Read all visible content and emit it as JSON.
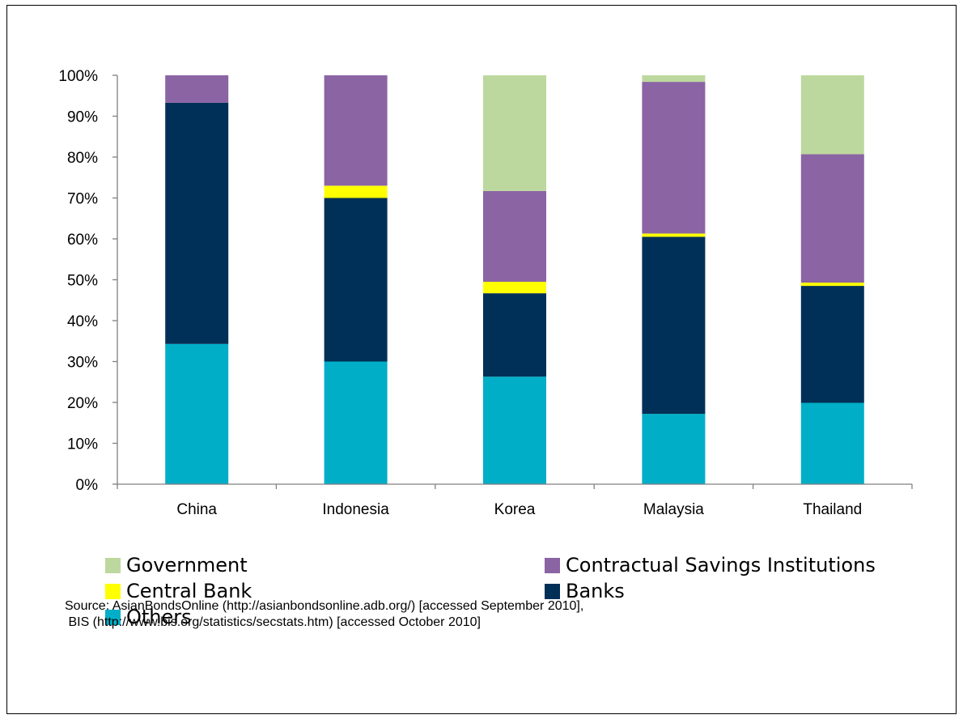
{
  "chart_data": {
    "type": "bar",
    "stacked": true,
    "categories": [
      "China",
      "Indonesia",
      "Korea",
      "Malaysia",
      "Thailand"
    ],
    "series": [
      {
        "name": "Others",
        "color": "#00AEC7",
        "values": [
          34.3,
          30.0,
          26.3,
          17.2,
          19.9
        ]
      },
      {
        "name": "Banks",
        "color": "#003057",
        "values": [
          59.0,
          40.0,
          20.4,
          43.3,
          28.6
        ]
      },
      {
        "name": "Central Bank",
        "color": "#FFFF00",
        "values": [
          0.0,
          3.0,
          2.8,
          0.8,
          0.8
        ]
      },
      {
        "name": "Contractual Savings Institutions",
        "color": "#8B64A4",
        "values": [
          6.7,
          27.0,
          22.2,
          37.1,
          31.4
        ]
      },
      {
        "name": "Government",
        "color": "#BDD89E",
        "values": [
          0.0,
          0.0,
          28.3,
          1.6,
          19.3
        ]
      }
    ],
    "yticks": [
      "0%",
      "10%",
      "20%",
      "30%",
      "40%",
      "50%",
      "60%",
      "70%",
      "80%",
      "90%",
      "100%"
    ],
    "ylim": [
      0,
      100
    ],
    "grid": false,
    "legend_position": "bottom"
  },
  "legend": [
    {
      "label": "Government",
      "color": "#BDD89E"
    },
    {
      "label": "Contractual Savings Institutions",
      "color": "#8B64A4"
    },
    {
      "label": "Central Bank",
      "color": "#FFFF00"
    },
    {
      "label": "Banks",
      "color": "#003057"
    },
    {
      "label": "Others",
      "color": "#00AEC7"
    }
  ],
  "source": {
    "line1": "Source: AsianBondsOnline (http://asianbondsonline.adb.org/) [accessed September 2010],",
    "line2": " BIS (http://www.bis.org/statistics/secstats.htm) [accessed October 2010]"
  }
}
